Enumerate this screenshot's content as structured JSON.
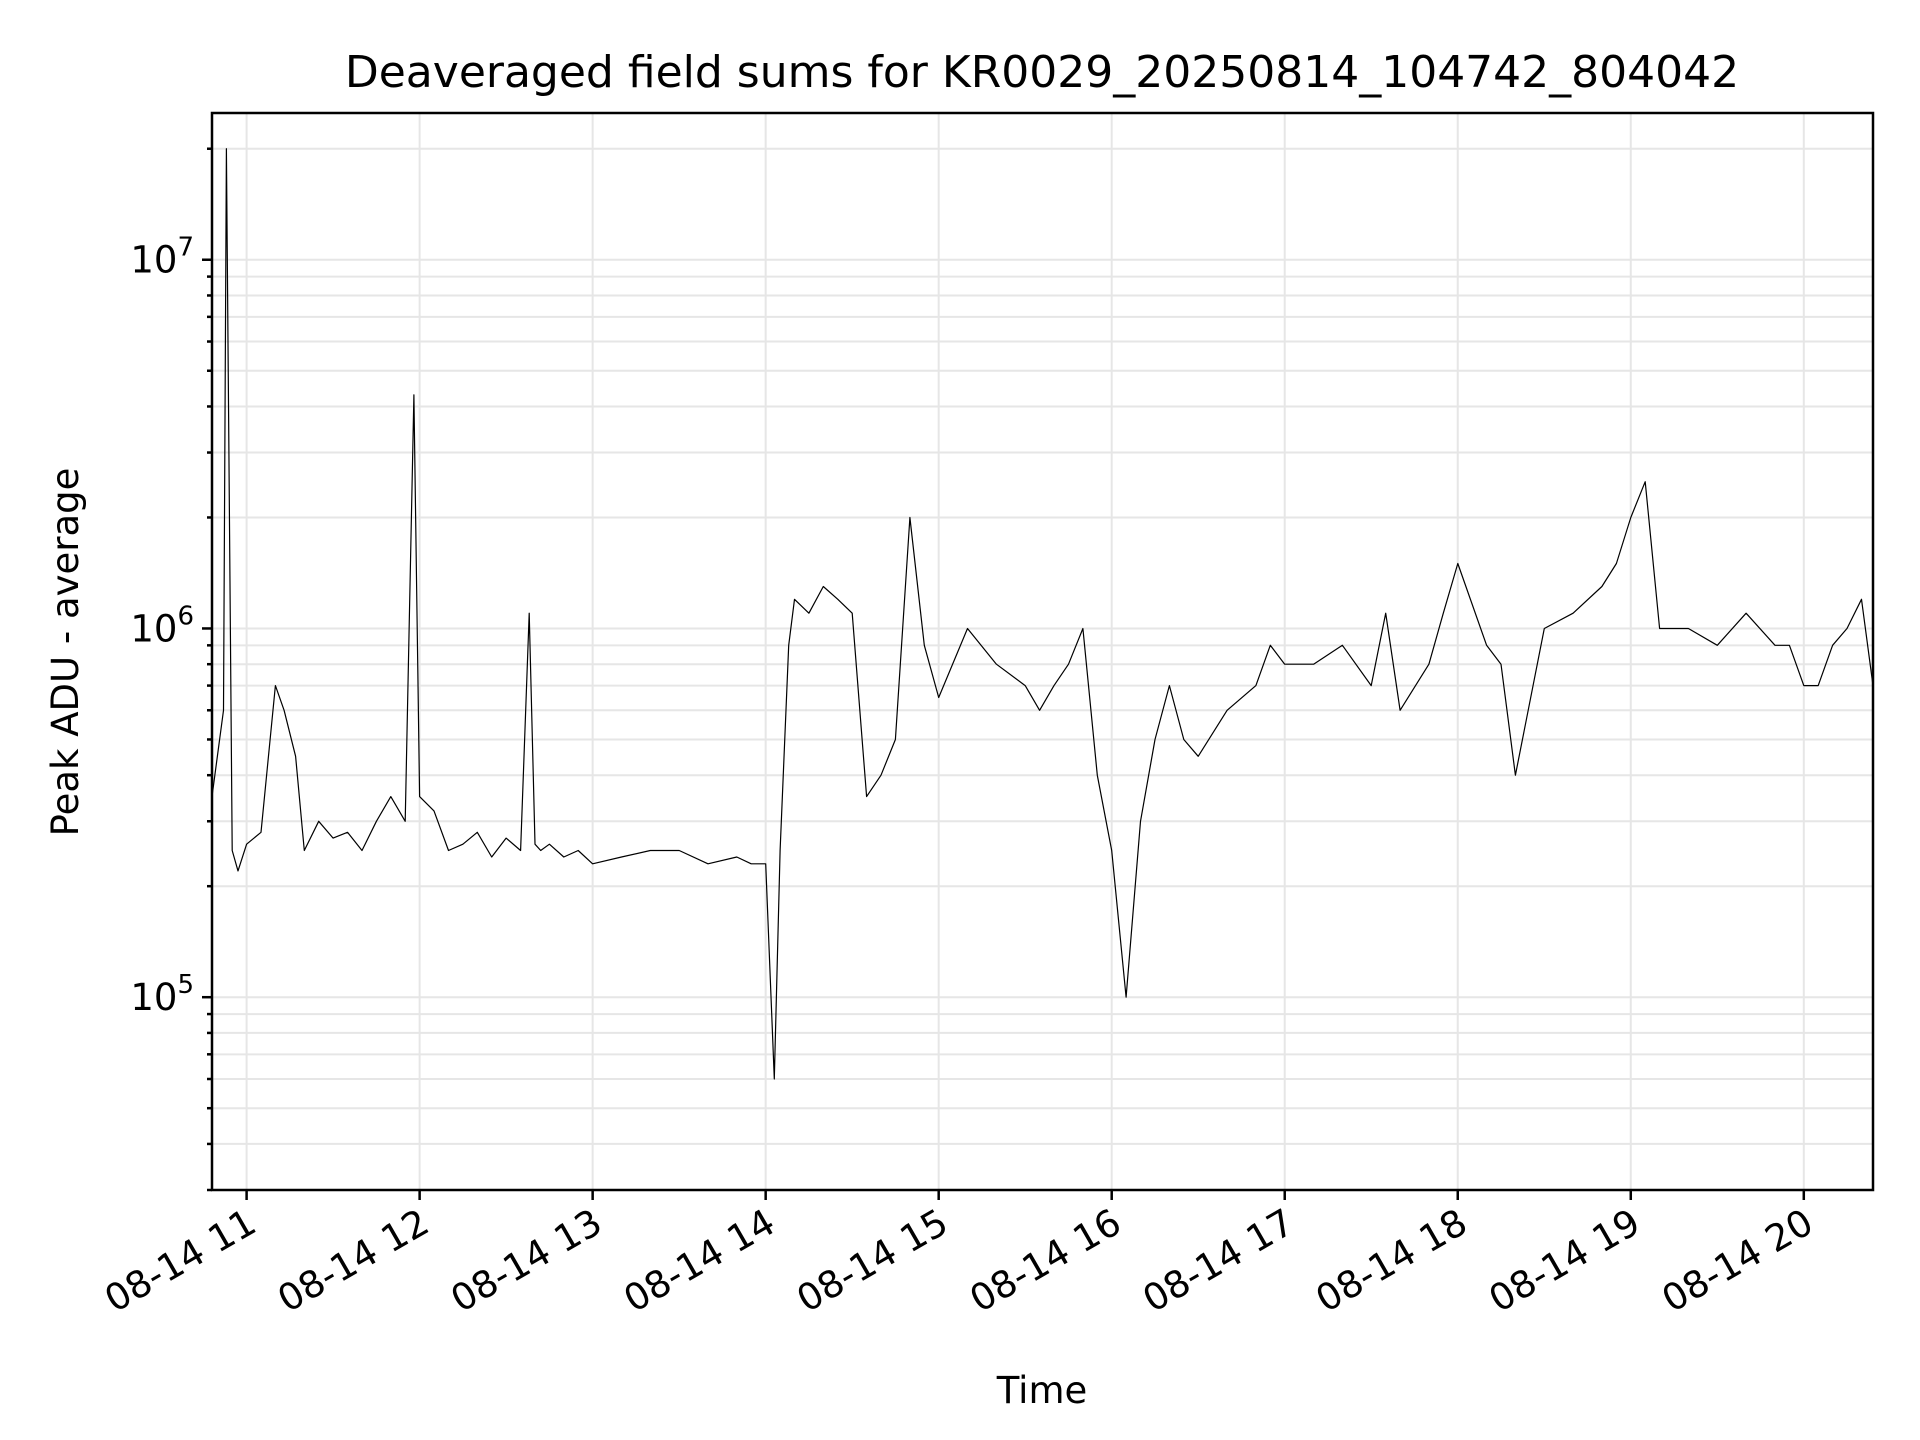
{
  "chart_data": {
    "type": "line",
    "title": "Deaveraged field sums for KR0029_20250814_104742_804042",
    "xlabel": "Time",
    "ylabel": "Peak ADU - average",
    "yscale": "log",
    "grid": true,
    "legend": "none",
    "xlim": [
      "2025-08-14 10:48",
      "2025-08-14 20:24"
    ],
    "ylim": [
      30000,
      25000000
    ],
    "x_ticks": [
      "08-14 11",
      "08-14 12",
      "08-14 13",
      "08-14 14",
      "08-14 15",
      "08-14 16",
      "08-14 17",
      "08-14 18",
      "08-14 19",
      "08-14 20"
    ],
    "y_ticks": [
      {
        "base": "10",
        "exp": "5",
        "value": 100000
      },
      {
        "base": "10",
        "exp": "6",
        "value": 1000000
      },
      {
        "base": "10",
        "exp": "7",
        "value": 10000000
      }
    ],
    "series": [
      {
        "color": "#000000",
        "x": [
          "2025-08-14 10:48",
          "2025-08-14 10:52",
          "2025-08-14 10:53",
          "2025-08-14 10:55",
          "2025-08-14 10:57",
          "2025-08-14 11:00",
          "2025-08-14 11:05",
          "2025-08-14 11:10",
          "2025-08-14 11:13",
          "2025-08-14 11:17",
          "2025-08-14 11:20",
          "2025-08-14 11:25",
          "2025-08-14 11:30",
          "2025-08-14 11:35",
          "2025-08-14 11:40",
          "2025-08-14 11:45",
          "2025-08-14 11:50",
          "2025-08-14 11:55",
          "2025-08-14 11:58",
          "2025-08-14 12:00",
          "2025-08-14 12:05",
          "2025-08-14 12:10",
          "2025-08-14 12:15",
          "2025-08-14 12:20",
          "2025-08-14 12:25",
          "2025-08-14 12:30",
          "2025-08-14 12:35",
          "2025-08-14 12:38",
          "2025-08-14 12:40",
          "2025-08-14 12:42",
          "2025-08-14 12:45",
          "2025-08-14 12:50",
          "2025-08-14 12:55",
          "2025-08-14 13:00",
          "2025-08-14 13:10",
          "2025-08-14 13:20",
          "2025-08-14 13:30",
          "2025-08-14 13:40",
          "2025-08-14 13:50",
          "2025-08-14 13:55",
          "2025-08-14 14:00",
          "2025-08-14 14:03",
          "2025-08-14 14:05",
          "2025-08-14 14:08",
          "2025-08-14 14:10",
          "2025-08-14 14:15",
          "2025-08-14 14:20",
          "2025-08-14 14:25",
          "2025-08-14 14:30",
          "2025-08-14 14:35",
          "2025-08-14 14:40",
          "2025-08-14 14:45",
          "2025-08-14 14:50",
          "2025-08-14 14:55",
          "2025-08-14 15:00",
          "2025-08-14 15:10",
          "2025-08-14 15:20",
          "2025-08-14 15:30",
          "2025-08-14 15:35",
          "2025-08-14 15:40",
          "2025-08-14 15:45",
          "2025-08-14 15:50",
          "2025-08-14 15:55",
          "2025-08-14 16:00",
          "2025-08-14 16:05",
          "2025-08-14 16:10",
          "2025-08-14 16:15",
          "2025-08-14 16:20",
          "2025-08-14 16:25",
          "2025-08-14 16:30",
          "2025-08-14 16:40",
          "2025-08-14 16:50",
          "2025-08-14 16:55",
          "2025-08-14 17:00",
          "2025-08-14 17:10",
          "2025-08-14 17:20",
          "2025-08-14 17:30",
          "2025-08-14 17:35",
          "2025-08-14 17:40",
          "2025-08-14 17:50",
          "2025-08-14 17:55",
          "2025-08-14 18:00",
          "2025-08-14 18:10",
          "2025-08-14 18:15",
          "2025-08-14 18:20",
          "2025-08-14 18:30",
          "2025-08-14 18:40",
          "2025-08-14 18:50",
          "2025-08-14 18:55",
          "2025-08-14 19:00",
          "2025-08-14 19:05",
          "2025-08-14 19:10",
          "2025-08-14 19:20",
          "2025-08-14 19:30",
          "2025-08-14 19:40",
          "2025-08-14 19:50",
          "2025-08-14 19:55",
          "2025-08-14 20:00",
          "2025-08-14 20:05",
          "2025-08-14 20:10",
          "2025-08-14 20:15",
          "2025-08-14 20:20",
          "2025-08-14 20:24"
        ],
        "y": [
          350000,
          600000,
          20000000,
          250000,
          220000,
          260000,
          280000,
          700000,
          600000,
          450000,
          250000,
          300000,
          270000,
          280000,
          250000,
          300000,
          350000,
          300000,
          4300000,
          350000,
          320000,
          250000,
          260000,
          280000,
          240000,
          270000,
          250000,
          1100000,
          260000,
          250000,
          260000,
          240000,
          250000,
          230000,
          240000,
          250000,
          250000,
          230000,
          240000,
          230000,
          230000,
          60000,
          250000,
          900000,
          1200000,
          1100000,
          1300000,
          1200000,
          1100000,
          350000,
          400000,
          500000,
          2000000,
          900000,
          650000,
          1000000,
          800000,
          700000,
          600000,
          700000,
          800000,
          1000000,
          400000,
          250000,
          100000,
          300000,
          500000,
          700000,
          500000,
          450000,
          600000,
          700000,
          900000,
          800000,
          800000,
          900000,
          700000,
          1100000,
          600000,
          800000,
          1100000,
          1500000,
          900000,
          800000,
          400000,
          1000000,
          1100000,
          1300000,
          1500000,
          2000000,
          2500000,
          1000000,
          1000000,
          900000,
          1100000,
          900000,
          900000,
          700000,
          700000,
          900000,
          1000000,
          1200000,
          700000
        ]
      }
    ]
  }
}
